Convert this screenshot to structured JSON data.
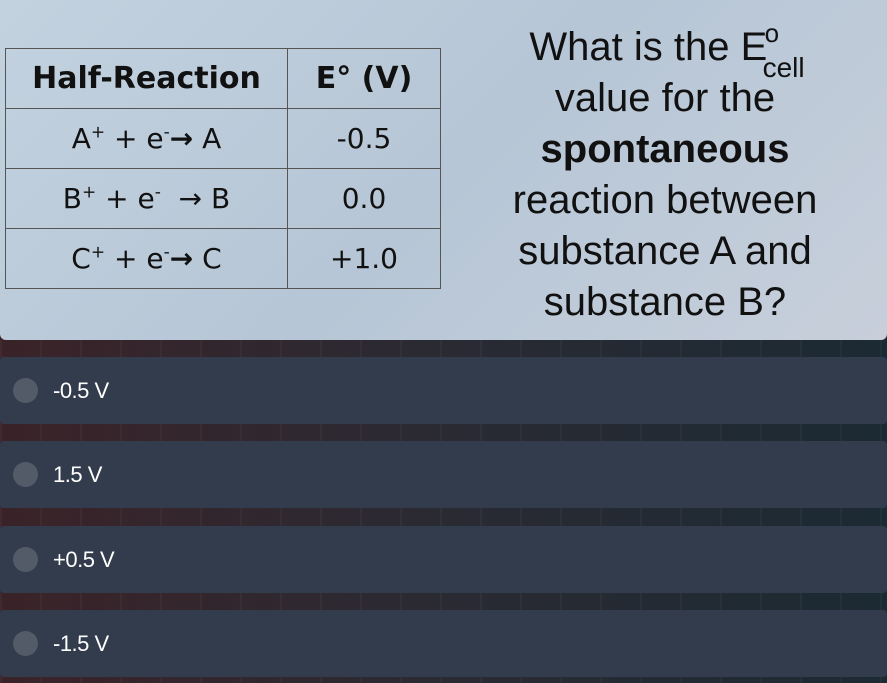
{
  "table": {
    "headers": [
      "Half-Reaction",
      "E° (V)"
    ],
    "rows": [
      {
        "ion": "A",
        "ion_charge": "+",
        "plus": "+",
        "electron": "e",
        "electron_charge": "-",
        "arrow": "→",
        "product": "A",
        "value": "-0.5"
      },
      {
        "ion": "B",
        "ion_charge": "+",
        "plus": "+",
        "electron": "e",
        "electron_charge": "-",
        "arrow": "→",
        "product": "B",
        "value": "0.0"
      },
      {
        "ion": "C",
        "ion_charge": "+",
        "plus": "+",
        "electron": "e",
        "electron_charge": "-",
        "arrow": "→",
        "product": "C",
        "value": "+1.0"
      }
    ]
  },
  "question": {
    "prefix": "What is the",
    "symbol": "E",
    "symbol_sup": "o",
    "symbol_sub": "cell",
    "line2": "value for the",
    "bold": "spontaneous",
    "line4": "reaction between",
    "line5": "substance A and",
    "line6": "substance B?"
  },
  "options": [
    "-0.5 V",
    "1.5 V",
    "+0.5 V",
    "-1.5 V"
  ]
}
